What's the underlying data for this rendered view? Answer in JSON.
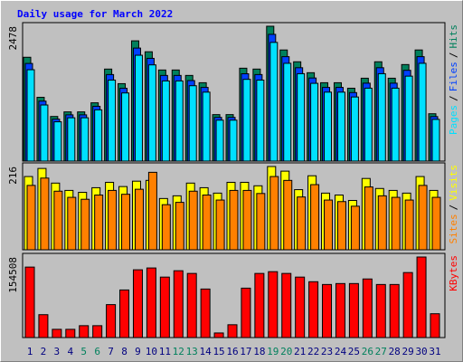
{
  "chart_data": [
    {
      "type": "bar",
      "title": "Daily usage for March 2022",
      "legend_separator": "/",
      "ylim": [
        0,
        2478
      ],
      "yticks": [
        2478
      ],
      "series": [
        {
          "name": "Hits",
          "color": "#00805c",
          "values": [
            1908,
            1172,
            820,
            904,
            904,
            1071,
            1691,
            1423,
            2210,
            2009,
            1674,
            1674,
            1574,
            1440,
            854,
            854,
            1707,
            1691,
            2478,
            2042,
            1825,
            1624,
            1440,
            1440,
            1339,
            1523,
            1825,
            1523,
            1774,
            2042,
            870
          ]
        },
        {
          "name": "Files",
          "color": "#0040ff",
          "values": [
            1794,
            1102,
            771,
            850,
            850,
            1007,
            1590,
            1338,
            2077,
            1888,
            1574,
            1574,
            1480,
            1354,
            803,
            803,
            1605,
            1590,
            2329,
            1919,
            1716,
            1527,
            1354,
            1354,
            1259,
            1432,
            1716,
            1432,
            1668,
            1919,
            818
          ]
        },
        {
          "name": "Pages",
          "color": "#00e0ff",
          "values": [
            1679,
            1031,
            722,
            796,
            796,
            942,
            1488,
            1252,
            1945,
            1768,
            1473,
            1473,
            1385,
            1267,
            752,
            752,
            1502,
            1488,
            2181,
            1797,
            1606,
            1429,
            1267,
            1267,
            1178,
            1340,
            1606,
            1340,
            1561,
            1797,
            766
          ]
        }
      ]
    },
    {
      "type": "bar",
      "legend_separator": "/",
      "ylim": [
        0,
        216
      ],
      "yticks": [
        216
      ],
      "series": [
        {
          "name": "Visits",
          "color": "#ffff00",
          "values": [
            190,
            211,
            173,
            154,
            149,
            161,
            175,
            164,
            178,
            180,
            133,
            140,
            173,
            161,
            147,
            175,
            175,
            166,
            216,
            204,
            156,
            192,
            147,
            142,
            128,
            185,
            159,
            154,
            147,
            190,
            154
          ]
        },
        {
          "name": "Sites",
          "color": "#ff8000",
          "values": [
            167,
            186,
            152,
            136,
            131,
            142,
            154,
            144,
            157,
            201,
            117,
            123,
            152,
            142,
            129,
            154,
            154,
            146,
            190,
            180,
            137,
            169,
            129,
            125,
            113,
            163,
            140,
            136,
            129,
            167,
            136
          ]
        }
      ]
    },
    {
      "type": "bar",
      "ylim": [
        0,
        154508
      ],
      "yticks": [
        154508
      ],
      "categories": [
        1,
        2,
        3,
        4,
        5,
        6,
        7,
        8,
        9,
        10,
        11,
        12,
        13,
        14,
        15,
        16,
        17,
        18,
        19,
        20,
        21,
        22,
        23,
        24,
        25,
        26,
        27,
        28,
        29,
        30,
        31
      ],
      "category_colors": [
        "#000080",
        "#000080",
        "#000080",
        "#000080",
        "#00805c",
        "#00805c",
        "#000080",
        "#000080",
        "#000080",
        "#000080",
        "#000080",
        "#00805c",
        "#00805c",
        "#000080",
        "#000080",
        "#000080",
        "#000080",
        "#000080",
        "#00805c",
        "#00805c",
        "#000080",
        "#000080",
        "#000080",
        "#000080",
        "#000080",
        "#00805c",
        "#00805c",
        "#000080",
        "#000080",
        "#000080",
        "#000080"
      ],
      "series": [
        {
          "name": "KBytes",
          "color": "#ff0000",
          "values": [
            135200,
            43900,
            15800,
            15800,
            22800,
            22800,
            63200,
            91300,
            130000,
            133500,
            116000,
            128200,
            123000,
            93100,
            8800,
            24600,
            94800,
            123000,
            126400,
            123000,
            116000,
            107100,
            101800,
            103600,
            103600,
            112400,
            101800,
            101800,
            124700,
            154508,
            45700
          ]
        }
      ]
    }
  ]
}
